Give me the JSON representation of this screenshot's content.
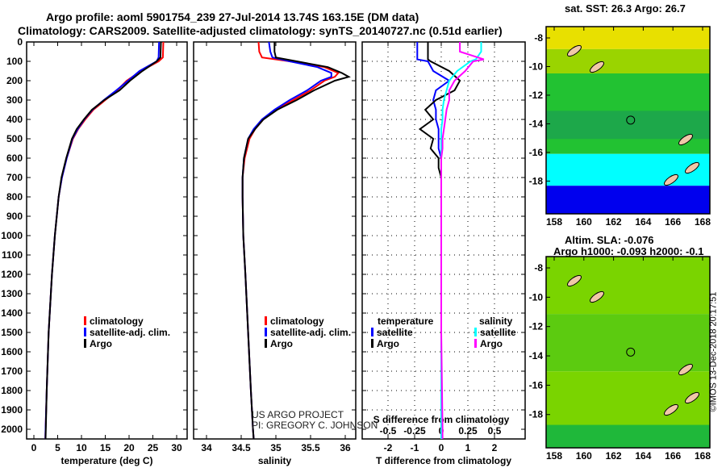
{
  "title": {
    "line1": "Argo profile: aoml 5901754_239 27-Jul-2014 13.74S 163.15E (DM data)",
    "line2": "Climatology: CARS2009. Satellite-adjusted climatology: synTS_20140727.nc (0.51d earlier)"
  },
  "colors": {
    "climatology": "#ff0000",
    "satellite": "#0000ff",
    "argo": "#000000",
    "sal_satellite": "#00ffff",
    "sal_argo": "#ff00ff"
  },
  "watermark": {
    "line1": "US ARGO PROJECT",
    "line2": "PI: GREGORY C. JOHNSON"
  },
  "credit": "©IMOS 13-Dec-2018 20:17:51",
  "chart_data": [
    {
      "type": "line",
      "title": "temperature",
      "xlabel": "temperature (deg C)",
      "xlim": [
        -1.5,
        32
      ],
      "ylim": [
        2050,
        0
      ],
      "yticks": [
        0,
        100,
        200,
        300,
        400,
        500,
        600,
        700,
        800,
        900,
        1000,
        1100,
        1200,
        1300,
        1400,
        1500,
        1600,
        1700,
        1800,
        1900,
        2000
      ],
      "xticks": [
        0,
        5,
        10,
        15,
        20,
        25,
        30
      ],
      "legend": [
        "climatology",
        "satellite-adj. clim.",
        "Argo"
      ],
      "depth": [
        0,
        80,
        100,
        150,
        200,
        250,
        300,
        350,
        400,
        450,
        500,
        600,
        700,
        800,
        1000,
        1200,
        1500,
        1800,
        2000,
        2050
      ],
      "series": [
        {
          "name": "climatology",
          "values": [
            27.2,
            27.1,
            26.2,
            22.5,
            19.5,
            17.5,
            15.0,
            12.5,
            10.8,
            9.3,
            8.2,
            6.9,
            5.9,
            5.2,
            4.4,
            3.8,
            3.1,
            2.7,
            2.45,
            2.4
          ]
        },
        {
          "name": "satellite-adj. clim.",
          "values": [
            26.3,
            26.2,
            25.8,
            22.2,
            19.8,
            17.3,
            14.7,
            12.3,
            10.6,
            9.2,
            8.1,
            6.9,
            5.9,
            5.2,
            4.4,
            3.8,
            3.1,
            2.7,
            2.45,
            2.4
          ]
        },
        {
          "name": "Argo",
          "values": [
            26.7,
            26.6,
            25.8,
            22.8,
            20.2,
            18.0,
            14.8,
            12.2,
            10.5,
            9.0,
            8.0,
            6.8,
            5.8,
            5.2,
            4.4,
            3.8,
            3.1,
            2.7,
            2.5,
            2.45
          ]
        }
      ]
    },
    {
      "type": "line",
      "title": "salinity",
      "xlabel": "salinity",
      "xlim": [
        33.8,
        36.1
      ],
      "ylim": [
        2050,
        0
      ],
      "xticks": [
        34,
        34.5,
        35,
        35.5,
        36
      ],
      "legend": [
        "climatology",
        "satellite-adj. clim.",
        "Argo"
      ],
      "depth": [
        0,
        50,
        80,
        100,
        130,
        160,
        180,
        200,
        250,
        300,
        350,
        400,
        450,
        500,
        600,
        700,
        800,
        1000,
        1200,
        1500,
        1800,
        2000,
        2050
      ],
      "series": [
        {
          "name": "climatology",
          "values": [
            34.75,
            34.76,
            34.8,
            35.2,
            35.7,
            35.9,
            35.85,
            35.7,
            35.5,
            35.25,
            35.0,
            34.82,
            34.7,
            34.62,
            34.55,
            34.52,
            34.52,
            34.53,
            34.56,
            34.6,
            34.64,
            34.67,
            34.68
          ]
        },
        {
          "name": "satellite-adj. clim.",
          "values": [
            34.9,
            34.92,
            34.95,
            35.2,
            35.6,
            35.8,
            35.8,
            35.65,
            35.45,
            35.2,
            34.98,
            34.8,
            34.68,
            34.6,
            34.54,
            34.52,
            34.52,
            34.53,
            34.56,
            34.6,
            34.64,
            34.67,
            34.68
          ]
        },
        {
          "name": "Argo",
          "values": [
            34.98,
            34.98,
            35.0,
            35.3,
            35.75,
            35.95,
            36.05,
            35.85,
            35.55,
            35.3,
            35.02,
            34.82,
            34.7,
            34.6,
            34.54,
            34.52,
            34.52,
            34.53,
            34.56,
            34.6,
            34.64,
            34.67,
            34.68
          ]
        }
      ]
    },
    {
      "type": "line",
      "title": "difference from climatology",
      "xlabel": "T difference from climatology",
      "x2label": "S difference from climatology",
      "xlim": [
        -3,
        3
      ],
      "ylim": [
        2050,
        0
      ],
      "xticks": [
        -2,
        -1,
        0,
        1,
        2
      ],
      "x2ticks": [
        -0.5,
        -0.25,
        0,
        0.25,
        0.5
      ],
      "legend_temperature": {
        "title": "temperature",
        "items": [
          "satellite",
          "Argo"
        ]
      },
      "legend_salinity": {
        "title": "salinity",
        "items": [
          "satellite",
          "Argo"
        ]
      },
      "depth": [
        0,
        50,
        90,
        100,
        150,
        200,
        250,
        300,
        350,
        400,
        450,
        500,
        550,
        600,
        650,
        700,
        800,
        1000,
        1500,
        2000,
        2050
      ],
      "series": [
        {
          "name": "T satellite",
          "values": [
            -0.9,
            -0.9,
            -0.9,
            -0.5,
            -0.3,
            0.3,
            -0.2,
            -0.3,
            -0.2,
            -0.2,
            -0.1,
            -0.1,
            -0.1,
            0,
            0,
            0,
            0,
            0,
            0,
            0,
            0
          ]
        },
        {
          "name": "T Argo",
          "values": [
            -0.5,
            -0.5,
            -0.5,
            -0.4,
            0.3,
            0.7,
            0.5,
            -0.2,
            -0.6,
            -0.3,
            -0.8,
            -0.3,
            -0.4,
            -0.1,
            -0.1,
            0,
            0,
            0,
            0,
            0,
            0
          ]
        },
        {
          "name": "S satellite",
          "values": [
            1.5,
            1.5,
            1.3,
            1.1,
            0.6,
            0.3,
            0.2,
            0.1,
            0.05,
            0.05,
            0,
            0,
            0,
            0,
            0,
            0,
            0,
            0,
            0,
            0,
            0
          ]
        },
        {
          "name": "S Argo",
          "values": [
            0.7,
            0.7,
            1.6,
            1.2,
            0.9,
            0.5,
            0.3,
            0.3,
            0.2,
            0.15,
            0.1,
            0.05,
            0.05,
            0,
            0,
            0,
            0,
            0,
            0,
            0.05,
            0.05
          ]
        }
      ]
    }
  ],
  "maps": [
    {
      "title": "sat. SST: 26.3 Argo: 26.7",
      "lon_ticks": [
        "158",
        "160",
        "162",
        "164",
        "166",
        "168"
      ],
      "lat_ticks": [
        "-8",
        "-10",
        "-12",
        "-14",
        "-16",
        "-18"
      ]
    },
    {
      "title1": "Altim. SLA: -0.076",
      "title2": "Argo h1000: -0.093 h2000: -0.1",
      "lon_ticks": [
        "158",
        "160",
        "162",
        "164",
        "166",
        "168"
      ],
      "lat_ticks": [
        "-8",
        "-10",
        "-12",
        "-14",
        "-16",
        "-18"
      ]
    }
  ]
}
